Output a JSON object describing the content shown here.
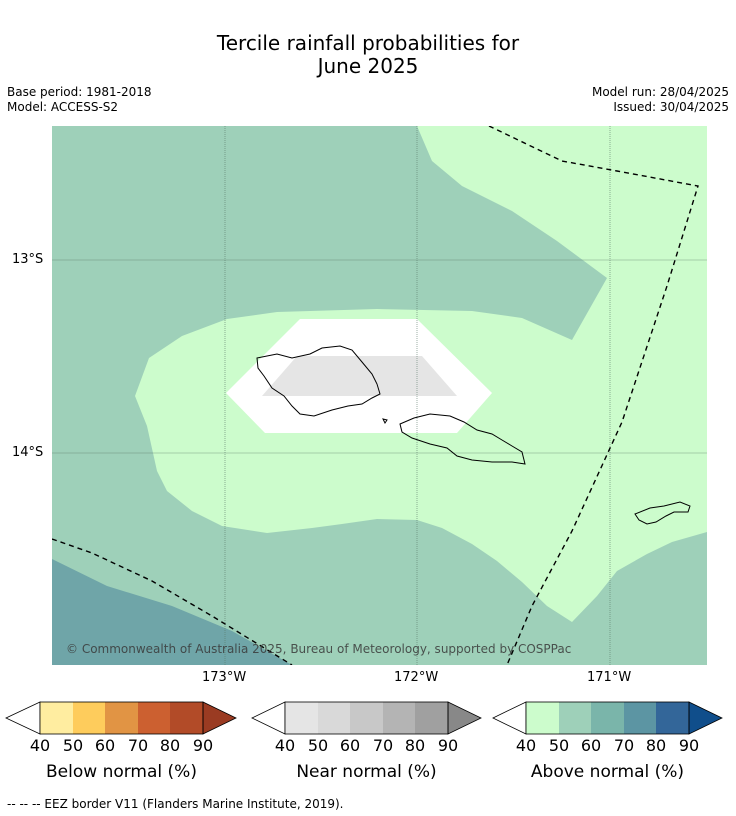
{
  "title_line1": "Tercile rainfall probabilities for",
  "title_line2": "June 2025",
  "meta": {
    "base_period": "Base period: 1981-2018",
    "model": "Model: ACCESS-S2",
    "model_run": "Model run: 28/04/2025",
    "issued": "Issued: 30/04/2025"
  },
  "map": {
    "lat_labels": [
      "13°S",
      "14°S"
    ],
    "lon_labels": [
      "173°W",
      "172°W",
      "171°W"
    ],
    "copyright": "© Commonwealth of Australia 2025, Bureau of Meteorology, supported by COSPPac"
  },
  "colors": {
    "above_40": "#ccfccc",
    "above_50": "#9ed0b9",
    "above_60": "#7ab5aa",
    "above_70": "#5c95a3",
    "above_80": "#336699",
    "above_90": "#104e8b",
    "near_40": "#e5e5e5",
    "near_50": "#d9d9d9",
    "near_60": "#c8c8c8",
    "near_70": "#b4b4b4",
    "near_80": "#a0a0a0",
    "near_90": "#888888",
    "below_40": "#ffeda0",
    "below_50": "#fecc5c",
    "below_60": "#e19444",
    "below_70": "#cc6030",
    "below_80": "#b24b28",
    "below_90": "#9a3b22"
  },
  "colorbars": [
    {
      "label": "Below normal (%)",
      "ticks": [
        "40",
        "50",
        "60",
        "70",
        "80",
        "90"
      ]
    },
    {
      "label": "Near normal (%)",
      "ticks": [
        "40",
        "50",
        "60",
        "70",
        "80",
        "90"
      ]
    },
    {
      "label": "Above normal (%)",
      "ticks": [
        "40",
        "50",
        "60",
        "70",
        "80",
        "90"
      ]
    }
  ],
  "footnote": "-- -- -- EEZ border V11 (Flanders Marine Institute, 2019)."
}
